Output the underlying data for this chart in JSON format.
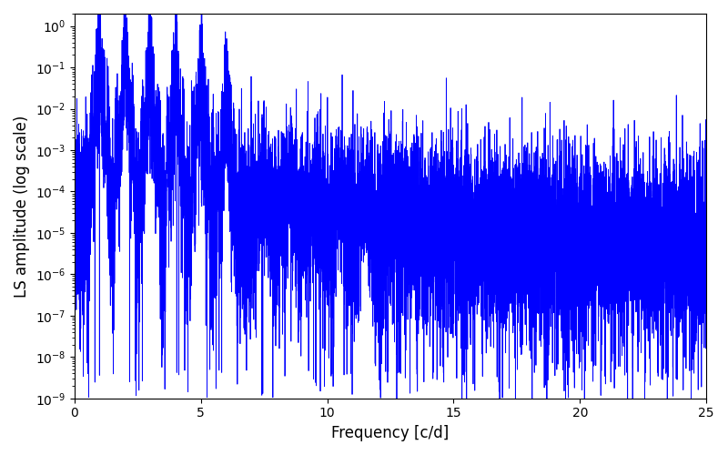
{
  "title": "",
  "xlabel": "Frequency [c/d]",
  "ylabel": "LS amplitude (log scale)",
  "xlim": [
    0,
    25
  ],
  "ylim": [
    1e-09,
    2.0
  ],
  "line_color": "#0000ff",
  "line_width": 0.6,
  "figsize": [
    8.0,
    5.0
  ],
  "dpi": 100,
  "seed": 12345,
  "n_points": 12000,
  "freq_max": 25.0,
  "background": "#ffffff"
}
